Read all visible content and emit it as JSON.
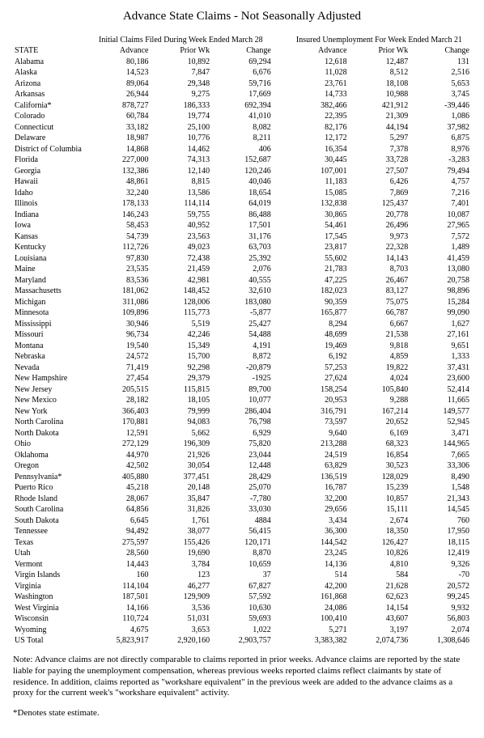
{
  "title": "Advance State Claims - Not Seasonally Adjusted",
  "group_headers": {
    "initial": "Initial Claims Filed During Week Ended March 28",
    "insured": "Insured Unemployment For Week Ended March 21"
  },
  "columns": {
    "state": "STATE",
    "advance1": "Advance",
    "prior1": "Prior Wk",
    "change1": "Change",
    "advance2": "Advance",
    "prior2": "Prior Wk",
    "change2": "Change"
  },
  "rows": [
    {
      "state": "Alabama",
      "a1": "80,186",
      "p1": "10,892",
      "c1": "69,294",
      "a2": "12,618",
      "p2": "12,487",
      "c2": "131"
    },
    {
      "state": "Alaska",
      "a1": "14,523",
      "p1": "7,847",
      "c1": "6,676",
      "a2": "11,028",
      "p2": "8,512",
      "c2": "2,516"
    },
    {
      "state": "Arizona",
      "a1": "89,064",
      "p1": "29,348",
      "c1": "59,716",
      "a2": "23,761",
      "p2": "18,108",
      "c2": "5,653"
    },
    {
      "state": "Arkansas",
      "a1": "26,944",
      "p1": "9,275",
      "c1": "17,669",
      "a2": "14,733",
      "p2": "10,988",
      "c2": "3,745"
    },
    {
      "state": "California*",
      "a1": "878,727",
      "p1": "186,333",
      "c1": "692,394",
      "a2": "382,466",
      "p2": "421,912",
      "c2": "-39,446"
    },
    {
      "state": "Colorado",
      "a1": "60,784",
      "p1": "19,774",
      "c1": "41,010",
      "a2": "22,395",
      "p2": "21,309",
      "c2": "1,086"
    },
    {
      "state": "Connecticut",
      "a1": "33,182",
      "p1": "25,100",
      "c1": "8,082",
      "a2": "82,176",
      "p2": "44,194",
      "c2": "37,982"
    },
    {
      "state": "Delaware",
      "a1": "18,987",
      "p1": "10,776",
      "c1": "8,211",
      "a2": "12,172",
      "p2": "5,297",
      "c2": "6,875"
    },
    {
      "state": "District of Columbia",
      "a1": "14,868",
      "p1": "14,462",
      "c1": "406",
      "a2": "16,354",
      "p2": "7,378",
      "c2": "8,976"
    },
    {
      "state": "Florida",
      "a1": "227,000",
      "p1": "74,313",
      "c1": "152,687",
      "a2": "30,445",
      "p2": "33,728",
      "c2": "-3,283"
    },
    {
      "state": "Georgia",
      "a1": "132,386",
      "p1": "12,140",
      "c1": "120,246",
      "a2": "107,001",
      "p2": "27,507",
      "c2": "79,494"
    },
    {
      "state": "Hawaii",
      "a1": "48,861",
      "p1": "8,815",
      "c1": "40,046",
      "a2": "11,183",
      "p2": "6,426",
      "c2": "4,757"
    },
    {
      "state": "Idaho",
      "a1": "32,240",
      "p1": "13,586",
      "c1": "18,654",
      "a2": "15,085",
      "p2": "7,869",
      "c2": "7,216"
    },
    {
      "state": "Illinois",
      "a1": "178,133",
      "p1": "114,114",
      "c1": "64,019",
      "a2": "132,838",
      "p2": "125,437",
      "c2": "7,401"
    },
    {
      "state": "Indiana",
      "a1": "146,243",
      "p1": "59,755",
      "c1": "86,488",
      "a2": "30,865",
      "p2": "20,778",
      "c2": "10,087"
    },
    {
      "state": "Iowa",
      "a1": "58,453",
      "p1": "40,952",
      "c1": "17,501",
      "a2": "54,461",
      "p2": "26,496",
      "c2": "27,965"
    },
    {
      "state": "Kansas",
      "a1": "54,739",
      "p1": "23,563",
      "c1": "31,176",
      "a2": "17,545",
      "p2": "9,973",
      "c2": "7,572"
    },
    {
      "state": "Kentucky",
      "a1": "112,726",
      "p1": "49,023",
      "c1": "63,703",
      "a2": "23,817",
      "p2": "22,328",
      "c2": "1,489"
    },
    {
      "state": "Louisiana",
      "a1": "97,830",
      "p1": "72,438",
      "c1": "25,392",
      "a2": "55,602",
      "p2": "14,143",
      "c2": "41,459"
    },
    {
      "state": "Maine",
      "a1": "23,535",
      "p1": "21,459",
      "c1": "2,076",
      "a2": "21,783",
      "p2": "8,703",
      "c2": "13,080"
    },
    {
      "state": "Maryland",
      "a1": "83,536",
      "p1": "42,981",
      "c1": "40,555",
      "a2": "47,225",
      "p2": "26,467",
      "c2": "20,758"
    },
    {
      "state": "Massachusetts",
      "a1": "181,062",
      "p1": "148,452",
      "c1": "32,610",
      "a2": "182,023",
      "p2": "83,127",
      "c2": "98,896"
    },
    {
      "state": "Michigan",
      "a1": "311,086",
      "p1": "128,006",
      "c1": "183,080",
      "a2": "90,359",
      "p2": "75,075",
      "c2": "15,284"
    },
    {
      "state": "Minnesota",
      "a1": "109,896",
      "p1": "115,773",
      "c1": "-5,877",
      "a2": "165,877",
      "p2": "66,787",
      "c2": "99,090"
    },
    {
      "state": "Mississippi",
      "a1": "30,946",
      "p1": "5,519",
      "c1": "25,427",
      "a2": "8,294",
      "p2": "6,667",
      "c2": "1,627"
    },
    {
      "state": "Missouri",
      "a1": "96,734",
      "p1": "42,246",
      "c1": "54,488",
      "a2": "48,699",
      "p2": "21,538",
      "c2": "27,161"
    },
    {
      "state": "Montana",
      "a1": "19,540",
      "p1": "15,349",
      "c1": "4,191",
      "a2": "19,469",
      "p2": "9,818",
      "c2": "9,651"
    },
    {
      "state": "Nebraska",
      "a1": "24,572",
      "p1": "15,700",
      "c1": "8,872",
      "a2": "6,192",
      "p2": "4,859",
      "c2": "1,333"
    },
    {
      "state": "Nevada",
      "a1": "71,419",
      "p1": "92,298",
      "c1": "-20,879",
      "a2": "57,253",
      "p2": "19,822",
      "c2": "37,431"
    },
    {
      "state": "New Hampshire",
      "a1": "27,454",
      "p1": "29,379",
      "c1": "-1925",
      "a2": "27,624",
      "p2": "4,024",
      "c2": "23,600"
    },
    {
      "state": "New Jersey",
      "a1": "205,515",
      "p1": "115,815",
      "c1": "89,700",
      "a2": "158,254",
      "p2": "105,840",
      "c2": "52,414"
    },
    {
      "state": "New Mexico",
      "a1": "28,182",
      "p1": "18,105",
      "c1": "10,077",
      "a2": "20,953",
      "p2": "9,288",
      "c2": "11,665"
    },
    {
      "state": "New York",
      "a1": "366,403",
      "p1": "79,999",
      "c1": "286,404",
      "a2": "316,791",
      "p2": "167,214",
      "c2": "149,577"
    },
    {
      "state": "North Carolina",
      "a1": "170,881",
      "p1": "94,083",
      "c1": "76,798",
      "a2": "73,597",
      "p2": "20,652",
      "c2": "52,945"
    },
    {
      "state": "North Dakota",
      "a1": "12,591",
      "p1": "5,662",
      "c1": "6,929",
      "a2": "9,640",
      "p2": "6,169",
      "c2": "3,471"
    },
    {
      "state": "Ohio",
      "a1": "272,129",
      "p1": "196,309",
      "c1": "75,820",
      "a2": "213,288",
      "p2": "68,323",
      "c2": "144,965"
    },
    {
      "state": "Oklahoma",
      "a1": "44,970",
      "p1": "21,926",
      "c1": "23,044",
      "a2": "24,519",
      "p2": "16,854",
      "c2": "7,665"
    },
    {
      "state": "Oregon",
      "a1": "42,502",
      "p1": "30,054",
      "c1": "12,448",
      "a2": "63,829",
      "p2": "30,523",
      "c2": "33,306"
    },
    {
      "state": "Pennsylvania*",
      "a1": "405,880",
      "p1": "377,451",
      "c1": "28,429",
      "a2": "136,519",
      "p2": "128,029",
      "c2": "8,490"
    },
    {
      "state": "Puerto Rico",
      "a1": "45,218",
      "p1": "20,148",
      "c1": "25,070",
      "a2": "16,787",
      "p2": "15,239",
      "c2": "1,548"
    },
    {
      "state": "Rhode Island",
      "a1": "28,067",
      "p1": "35,847",
      "c1": "-7,780",
      "a2": "32,200",
      "p2": "10,857",
      "c2": "21,343"
    },
    {
      "state": "South Carolina",
      "a1": "64,856",
      "p1": "31,826",
      "c1": "33,030",
      "a2": "29,656",
      "p2": "15,111",
      "c2": "14,545"
    },
    {
      "state": "South Dakota",
      "a1": "6,645",
      "p1": "1,761",
      "c1": "4884",
      "a2": "3,434",
      "p2": "2,674",
      "c2": "760"
    },
    {
      "state": "Tennessee",
      "a1": "94,492",
      "p1": "38,077",
      "c1": "56,415",
      "a2": "36,300",
      "p2": "18,350",
      "c2": "17,950"
    },
    {
      "state": "Texas",
      "a1": "275,597",
      "p1": "155,426",
      "c1": "120,171",
      "a2": "144,542",
      "p2": "126,427",
      "c2": "18,115"
    },
    {
      "state": "Utah",
      "a1": "28,560",
      "p1": "19,690",
      "c1": "8,870",
      "a2": "23,245",
      "p2": "10,826",
      "c2": "12,419"
    },
    {
      "state": "Vermont",
      "a1": "14,443",
      "p1": "3,784",
      "c1": "10,659",
      "a2": "14,136",
      "p2": "4,810",
      "c2": "9,326"
    },
    {
      "state": "Virgin Islands",
      "a1": "160",
      "p1": "123",
      "c1": "37",
      "a2": "514",
      "p2": "584",
      "c2": "-70"
    },
    {
      "state": "Virginia",
      "a1": "114,104",
      "p1": "46,277",
      "c1": "67,827",
      "a2": "42,200",
      "p2": "21,628",
      "c2": "20,572"
    },
    {
      "state": "Washington",
      "a1": "187,501",
      "p1": "129,909",
      "c1": "57,592",
      "a2": "161,868",
      "p2": "62,623",
      "c2": "99,245"
    },
    {
      "state": "West Virginia",
      "a1": "14,166",
      "p1": "3,536",
      "c1": "10,630",
      "a2": "24,086",
      "p2": "14,154",
      "c2": "9,932"
    },
    {
      "state": "Wisconsin",
      "a1": "110,724",
      "p1": "51,031",
      "c1": "59,693",
      "a2": "100,410",
      "p2": "43,607",
      "c2": "56,803"
    },
    {
      "state": "Wyoming",
      "a1": "4,675",
      "p1": "3,653",
      "c1": "1,022",
      "a2": "5,271",
      "p2": "3,197",
      "c2": "2,074"
    },
    {
      "state": "US Total",
      "a1": "5,823,917",
      "p1": "2,920,160",
      "c1": "2,903,757",
      "a2": "3,383,382",
      "p2": "2,074,736",
      "c2": "1,308,646"
    }
  ],
  "note": "Note: Advance claims are not directly comparable to claims reported in prior weeks. Advance claims are reported by the state liable for paying the unemployment compensation, whereas previous weeks reported claims reflect claimants by state of residence. In addition, claims reported as \"workshare equivalent\" in the previous week are added to the advance claims as a proxy for the current week's \"workshare equivalent\" activity.",
  "footnote": "*Denotes state estimate."
}
